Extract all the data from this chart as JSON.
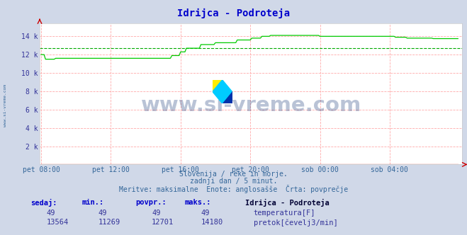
{
  "title": "Idrijca - Podroteja",
  "bg_color": "#d0d8e8",
  "plot_bg_color": "#ffffff",
  "grid_color": "#ffaaaa",
  "avg_line_color": "#00aa00",
  "temp_color": "#cc0000",
  "flow_color": "#00cc00",
  "x_tick_labels": [
    "pet 08:00",
    "pet 12:00",
    "pet 16:00",
    "pet 20:00",
    "sob 00:00",
    "sob 04:00"
  ],
  "x_tick_positions": [
    0,
    48,
    96,
    144,
    192,
    240
  ],
  "y_tick_labels": [
    "2 k",
    "4 k",
    "6 k",
    "8 k",
    "10 k",
    "12 k",
    "14 k"
  ],
  "y_tick_values": [
    2000,
    4000,
    6000,
    8000,
    10000,
    12000,
    14000
  ],
  "ylim": [
    0,
    15400
  ],
  "xlim": [
    -1,
    290
  ],
  "avg_flow": 12701,
  "footer_line1": "Slovenija / reke in morje.",
  "footer_line2": "zadnji dan / 5 minut.",
  "footer_line3": "Meritve: maksimalne  Enote: anglosašše  Črta: povprečje",
  "table_headers": [
    "sedaj:",
    "min.:",
    "povpr.:",
    "maks.:"
  ],
  "temp_row": [
    "49",
    "49",
    "49",
    "49"
  ],
  "flow_row": [
    "13564",
    "11269",
    "12701",
    "14180"
  ],
  "label_temp": "temperatura[F]",
  "label_flow": "pretok[čevelj3/min]",
  "station_label": "Idrijca - Podroteja",
  "watermark_text": "www.si-vreme.com",
  "side_label": "www.si-vreme.com",
  "logo_colors": {
    "yellow": "#ffee00",
    "cyan": "#00ccff",
    "blue": "#0033aa"
  }
}
